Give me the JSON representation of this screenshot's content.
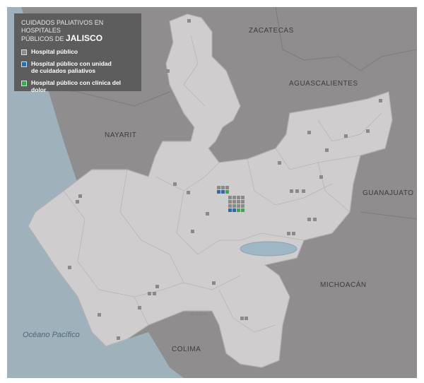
{
  "legend": {
    "title_line1": "CUIDADOS PALIATIVOS EN HOSPITALES",
    "title_line2_prefix": "PÚBLICOS DE ",
    "title_state": "JALISCO",
    "items": [
      {
        "label": "Hospital público",
        "color": "#8a8a8a"
      },
      {
        "label": "Hospital público con unidad de cuidados paliativos",
        "color": "#1f6fc0"
      },
      {
        "label": "Hospital público con clínica del dolor",
        "color": "#2bb34a"
      }
    ]
  },
  "labels": {
    "zacatecas": "ZACATECAS",
    "aguascalientes": "AGUASCALIENTES",
    "nayarit": "NAYARIT",
    "guanajuato": "GUANAJUATO",
    "michoacan": "MICHOACÁN",
    "colima": "COLIMA",
    "ocean": "Océano Pacífico"
  },
  "colors": {
    "jalisco": "#cfcdcd",
    "neighbors": "#8f8d8d",
    "ocean": "#9fb1bb",
    "lake": "#9fb6c4",
    "borders": "#a8a6a6"
  },
  "markers": [
    "gray",
    "gray",
    "gray",
    "gray",
    "gray",
    "gray",
    "gray",
    "gray",
    "gray",
    "gray",
    "gray",
    "gray",
    "gray",
    "gray",
    "gray",
    "gray",
    "gray",
    "gray",
    "gray",
    "gray",
    "gray",
    "gray",
    "gray",
    "gray",
    "gray",
    "gray",
    "gray",
    "gray",
    "gray",
    "gray",
    "gray",
    "gray",
    "gray",
    "gray",
    "gray",
    "gray"
  ],
  "clusters": [
    {
      "name": "cluster-north-guadalajara",
      "cells": [
        "gray",
        "gray",
        "gray",
        "blue",
        "blue",
        "green"
      ]
    },
    {
      "name": "cluster-guadalajara",
      "cells": [
        "gray",
        "gray",
        "gray",
        "gray",
        "gray",
        "gray",
        "gray",
        "gray",
        "gray",
        "gray",
        "gray",
        "gray",
        "blue",
        "blue",
        "green",
        "green"
      ]
    }
  ]
}
